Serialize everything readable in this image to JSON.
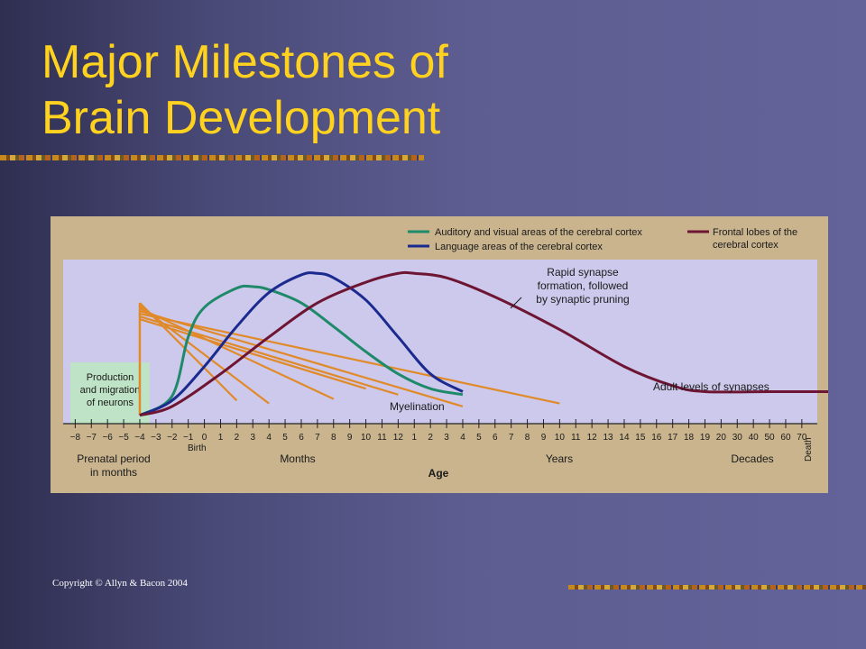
{
  "slide": {
    "title_line1": "Major Milestones of",
    "title_line2": "Brain Development",
    "copyright": "Copyright © Allyn & Bacon 2004"
  },
  "colors": {
    "background": "#5d5d91",
    "title": "#ffd21f",
    "auditory_visual": "#1f8a6a",
    "language": "#1b2a8f",
    "frontal": "#6e1533",
    "myelination": "#e08a2a",
    "plot_bg": "#cdc9ec",
    "paper": "#c9b48e"
  },
  "chart_data": {
    "type": "line",
    "title": "",
    "xlabel": "Age",
    "ylabel": "",
    "x_ticks": [
      "−8",
      "−7",
      "−6",
      "−5",
      "−4",
      "−3",
      "−2",
      "−1",
      "0",
      "1",
      "2",
      "3",
      "4",
      "5",
      "6",
      "7",
      "8",
      "9",
      "10",
      "11",
      "12",
      "1",
      "2",
      "3",
      "4",
      "5",
      "6",
      "7",
      "8",
      "9",
      "10",
      "11",
      "12",
      "13",
      "14",
      "15",
      "16",
      "17",
      "18",
      "19",
      "20",
      "30",
      "40",
      "50",
      "60",
      "70"
    ],
    "x_segments": [
      {
        "label": "Prenatal period in months",
        "line1": "Prenatal period",
        "line2": "in months"
      },
      {
        "label": "Months"
      },
      {
        "label": "Years"
      },
      {
        "label": "Decades"
      }
    ],
    "birth_label": "Birth",
    "death_label": "Death",
    "legend": [
      {
        "name": "Auditory and visual areas of the cerebral cortex",
        "color": "#1f8a6a"
      },
      {
        "name": "Language areas of the cerebral cortex",
        "color": "#1b2a8f"
      },
      {
        "name": "Frontal lobes of the cerebral cortex",
        "line1": "Frontal lobes of the",
        "line2": "cerebral cortex",
        "color": "#6e1533"
      }
    ],
    "legend_placement": "top",
    "series": [
      {
        "name": "Auditory and visual areas of the cerebral cortex",
        "points": [
          [
            -2,
            0.02
          ],
          [
            0,
            0.15
          ],
          [
            1,
            0.55
          ],
          [
            2,
            0.75
          ],
          [
            4,
            0.88
          ],
          [
            5,
            0.89
          ],
          [
            6,
            0.87
          ],
          [
            8,
            0.78
          ],
          [
            10,
            0.62
          ],
          [
            12,
            0.45
          ],
          [
            14,
            0.3
          ],
          [
            16,
            0.2
          ],
          [
            18,
            0.16
          ]
        ]
      },
      {
        "name": "Language areas of the cerebral cortex",
        "points": [
          [
            -2,
            0.02
          ],
          [
            0,
            0.12
          ],
          [
            2,
            0.35
          ],
          [
            4,
            0.62
          ],
          [
            6,
            0.85
          ],
          [
            8,
            0.97
          ],
          [
            9,
            0.98
          ],
          [
            10,
            0.95
          ],
          [
            12,
            0.8
          ],
          [
            14,
            0.55
          ],
          [
            16,
            0.3
          ],
          [
            18,
            0.18
          ]
        ]
      },
      {
        "name": "Frontal lobes of the cerebral cortex",
        "points": [
          [
            -2,
            0.02
          ],
          [
            0,
            0.08
          ],
          [
            3,
            0.3
          ],
          [
            6,
            0.55
          ],
          [
            9,
            0.78
          ],
          [
            12,
            0.92
          ],
          [
            14,
            0.98
          ],
          [
            15,
            0.98
          ],
          [
            17,
            0.95
          ],
          [
            20,
            0.82
          ],
          [
            24,
            0.6
          ],
          [
            28,
            0.35
          ],
          [
            31,
            0.22
          ],
          [
            33,
            0.18
          ],
          [
            37,
            0.18
          ],
          [
            41,
            0.18
          ],
          [
            46,
            0.18
          ]
        ]
      }
    ],
    "myelination": {
      "label": "Myelination",
      "origin_x": -2,
      "end_x": [
        4,
        6,
        10,
        18,
        24,
        14,
        12
      ]
    },
    "annotations": [
      {
        "text": "Production and migration of neurons",
        "line1": "Production",
        "line2": "and migration",
        "line3": "of neurons"
      },
      {
        "text": "Rapid synapse formation, followed by synaptic pruning",
        "line1": "Rapid synapse",
        "line2": "formation, followed",
        "line3": "by synaptic pruning"
      },
      {
        "text": "Adult levels of synapses"
      }
    ]
  }
}
